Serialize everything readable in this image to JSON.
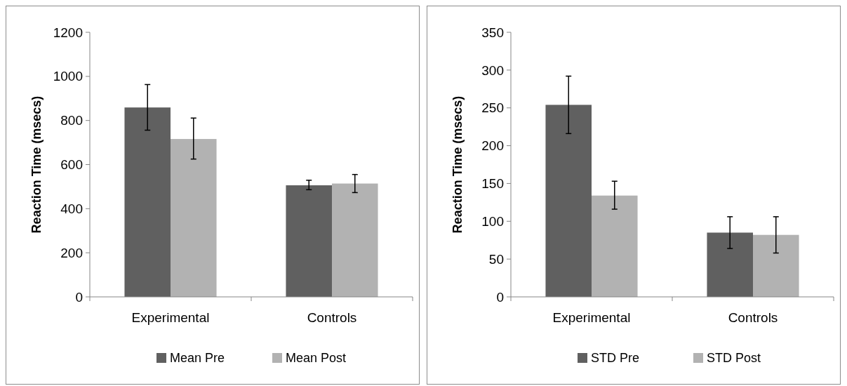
{
  "chart_data": [
    {
      "type": "bar",
      "categories": [
        "Experimental",
        "Controls"
      ],
      "ylabel": "Reaction Time (msecs)",
      "ylim": [
        0,
        1200
      ],
      "yticks": [
        0,
        200,
        400,
        600,
        800,
        1000,
        1200
      ],
      "legend": "bottom",
      "series": [
        {
          "name": "Mean Pre",
          "color": "#606060",
          "values": [
            859,
            506
          ],
          "errors": [
            [
              756,
              963
            ],
            [
              486,
              529
            ]
          ]
        },
        {
          "name": "Mean Post",
          "color": "#b2b2b2",
          "values": [
            716,
            514
          ],
          "errors": [
            [
              625,
              811
            ],
            [
              473,
              555
            ]
          ]
        }
      ]
    },
    {
      "type": "bar",
      "categories": [
        "Experimental",
        "Controls"
      ],
      "ylabel": "Reaction Time (msecs)",
      "ylim": [
        0,
        350
      ],
      "yticks": [
        0,
        50,
        100,
        150,
        200,
        250,
        300,
        350
      ],
      "legend": "bottom",
      "series": [
        {
          "name": "STD Pre",
          "color": "#606060",
          "values": [
            254,
            85
          ],
          "errors": [
            [
              216,
              292
            ],
            [
              64,
              106
            ]
          ]
        },
        {
          "name": "STD Post",
          "color": "#b2b2b2",
          "values": [
            134,
            82
          ],
          "errors": [
            [
              116,
              153
            ],
            [
              58,
              106
            ]
          ]
        }
      ]
    }
  ]
}
